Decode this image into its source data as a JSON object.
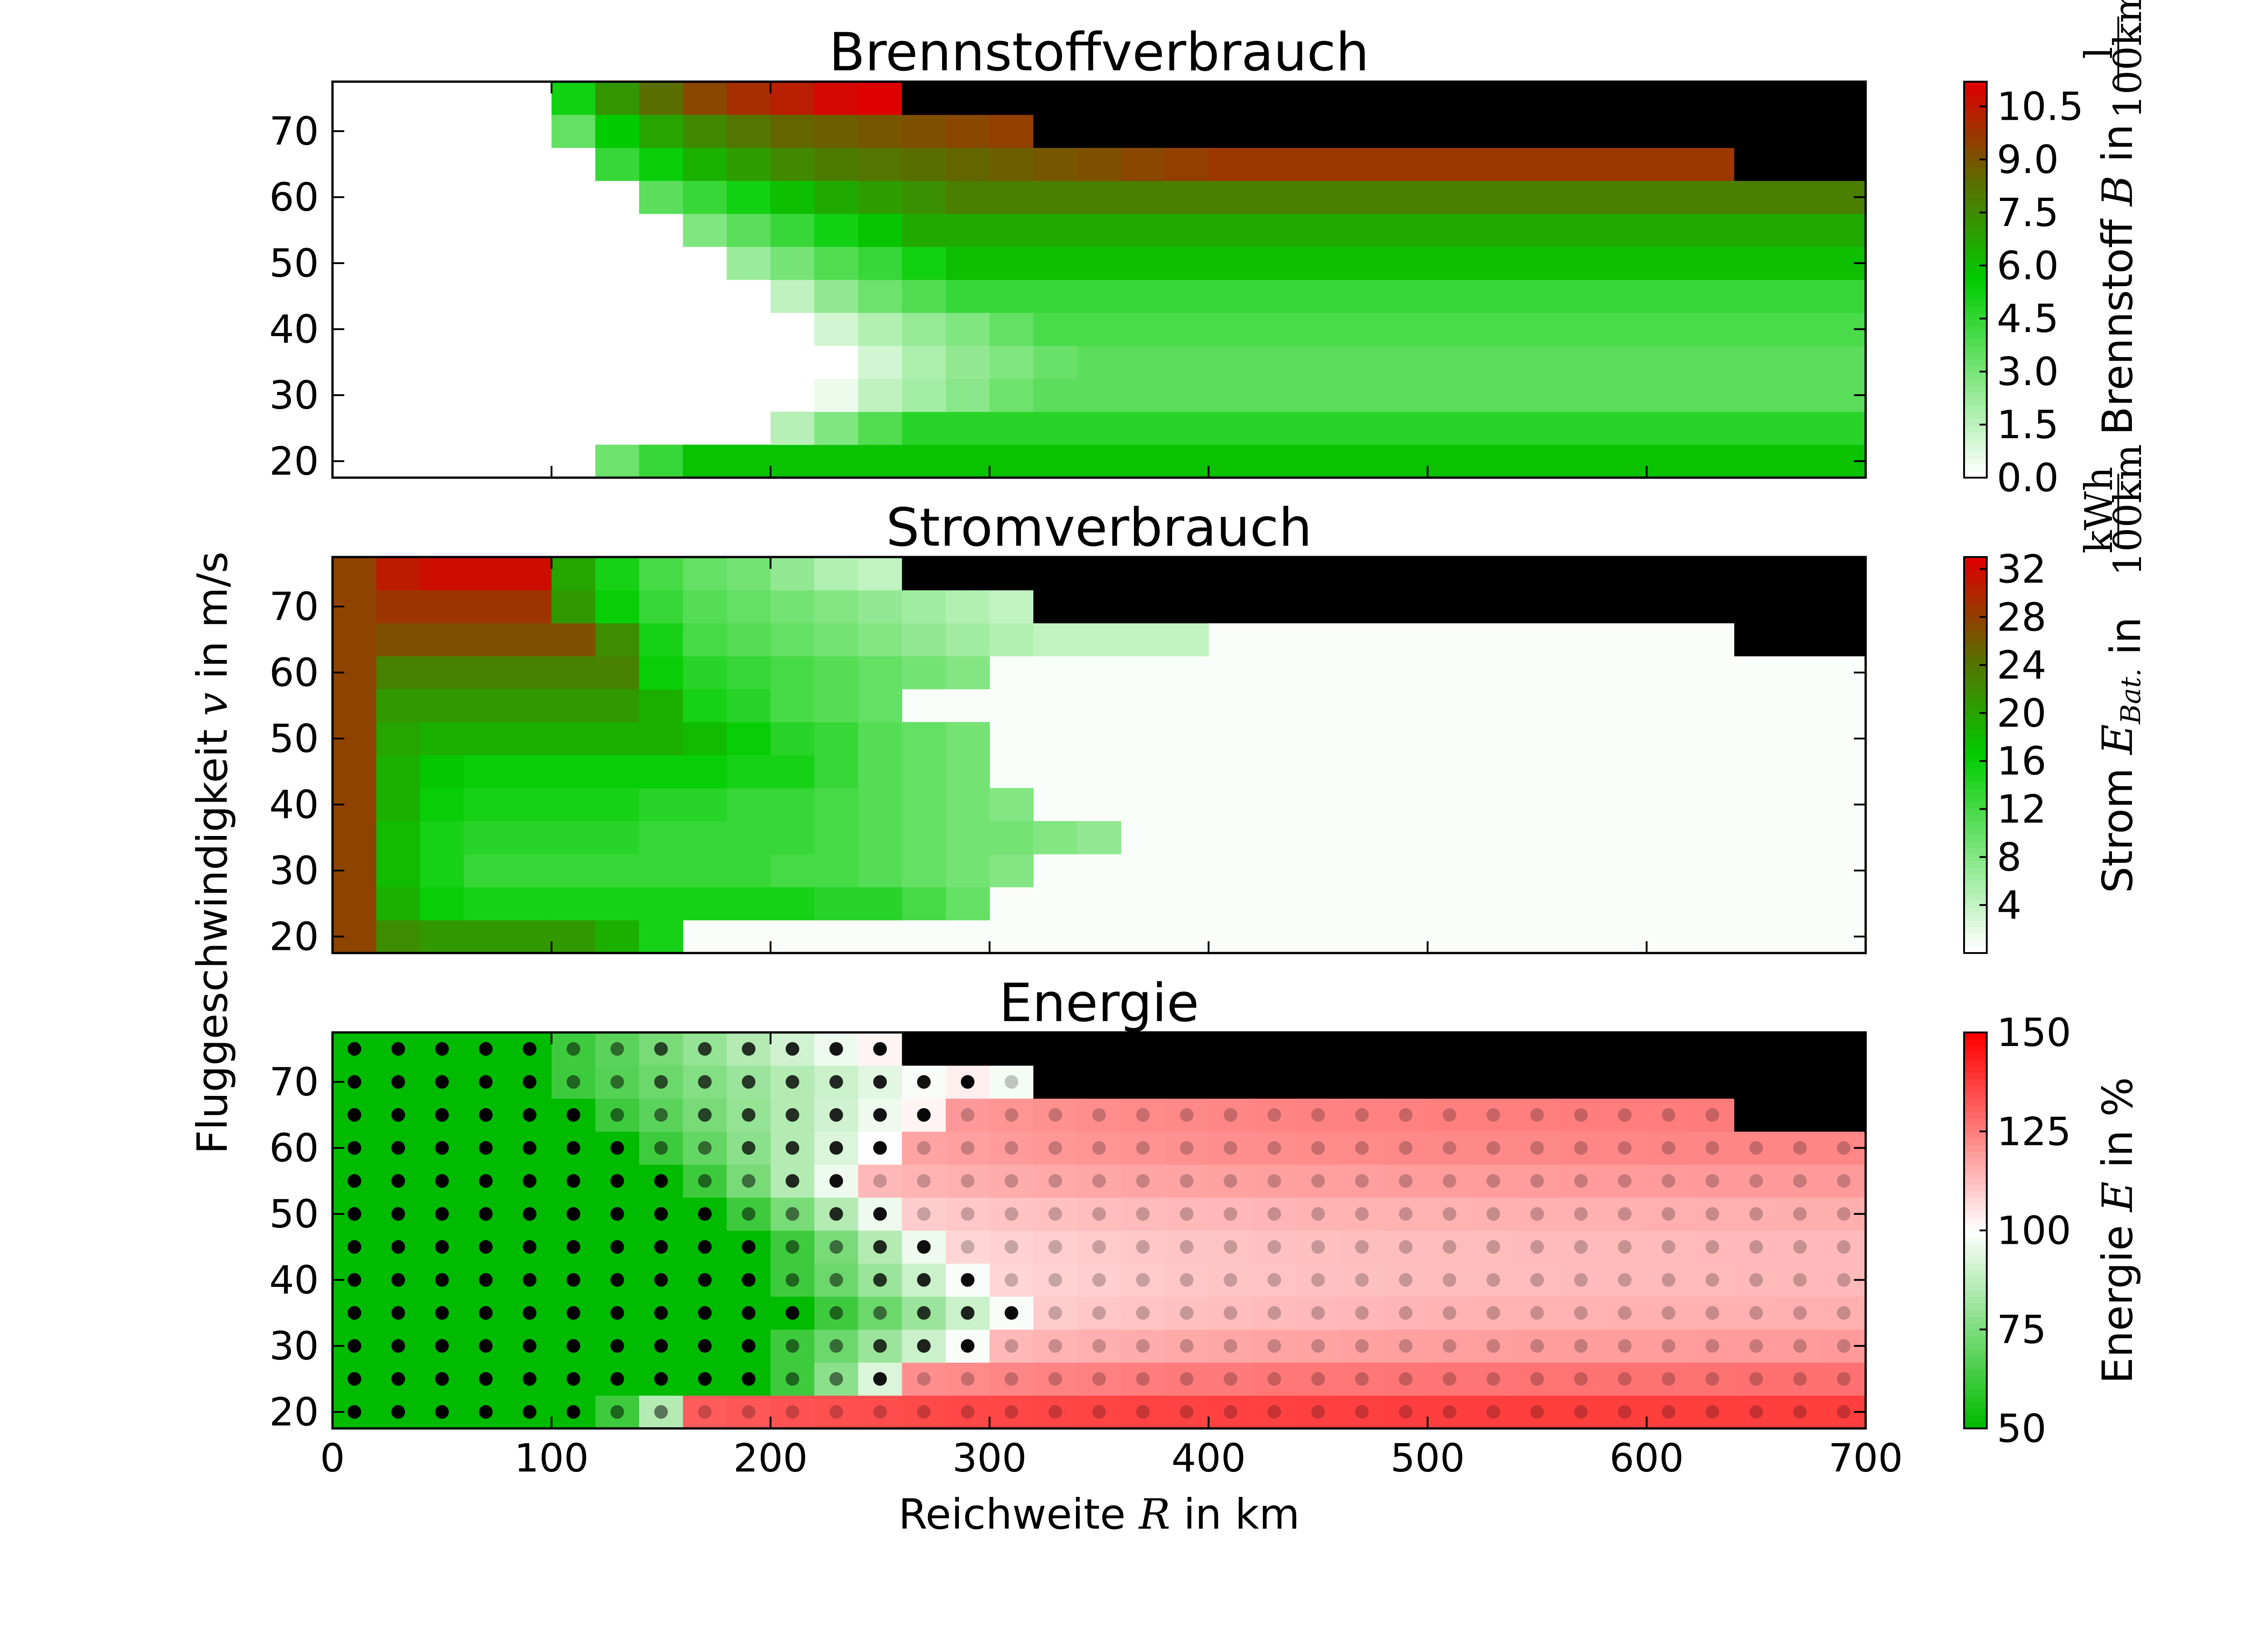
{
  "figure": {
    "shared_ylabel_prefix": "Fluggeschwindigkeit ",
    "shared_ylabel_var": "v",
    "shared_ylabel_suffix": " in m/s",
    "shared_xlabel_prefix": "Reichweite ",
    "shared_xlabel_var": "R",
    "shared_xlabel_suffix": " in km",
    "x_ticks": [
      0,
      100,
      200,
      300,
      400,
      500,
      600,
      700
    ],
    "y_ticks": [
      20,
      30,
      40,
      50,
      60,
      70
    ],
    "grid": {
      "x_bin_width": 20,
      "v_values": [
        20,
        25,
        30,
        35,
        40,
        45,
        50,
        55,
        60,
        65,
        70,
        75
      ],
      "xlim": [
        0,
        700
      ],
      "ylim": [
        17.5,
        77.5
      ]
    },
    "colors": {
      "infeasible": "#000000",
      "fuel_scale": [
        "#ffffff",
        "#00cc00",
        "#dd0000"
      ],
      "battery_scale": [
        "#ffffff",
        "#00cc00",
        "#dd0000"
      ],
      "energy_scale": [
        "#00bb00",
        "#ffffff",
        "#ff0000"
      ],
      "marker": "#000000"
    }
  },
  "chart_data": [
    {
      "type": "heatmap",
      "id": "fuel",
      "title": "Brennstoffverbrauch",
      "colorbar": {
        "label_prefix": "Brennstoff ",
        "label_var": "B",
        "label_suffix": " in ",
        "unit_num": "l",
        "unit_den": "100km",
        "ticks": [
          "0.0",
          "1.5",
          "3.0",
          "4.5",
          "6.0",
          "7.5",
          "9.0",
          "10.5"
        ],
        "range": [
          0,
          11.2
        ]
      },
      "infeasible_start_km": {
        "65": 640,
        "70": 320,
        "75": 260
      },
      "rows": {
        "20": {
          "x": [
            120,
            140,
            160
          ],
          "v": [
            3.2,
            4.4,
            5.9
          ]
        },
        "25": {
          "x": [
            200,
            220,
            240,
            260
          ],
          "v": [
            1.6,
            2.8,
            3.8,
            4.7
          ]
        },
        "30": {
          "x": [
            220,
            240,
            260,
            280,
            300,
            320
          ],
          "v": [
            0.4,
            1.4,
            2.0,
            2.6,
            3.2,
            3.6
          ]
        },
        "35": {
          "x": [
            240,
            260,
            280,
            300,
            320,
            340
          ],
          "v": [
            1.0,
            1.8,
            2.4,
            2.8,
            3.3,
            3.6
          ]
        },
        "40": {
          "x": [
            220,
            240,
            260,
            280,
            300,
            320
          ],
          "v": [
            1.0,
            1.7,
            2.3,
            2.8,
            3.4,
            4.0
          ]
        },
        "45": {
          "x": [
            200,
            220,
            240,
            260,
            280
          ],
          "v": [
            1.4,
            2.4,
            3.2,
            3.8,
            4.4
          ]
        },
        "50": {
          "x": [
            180,
            200,
            220,
            240,
            260,
            280
          ],
          "v": [
            2.2,
            3.0,
            3.8,
            4.4,
            5.2,
            6.0
          ]
        },
        "55": {
          "x": [
            160,
            180,
            200,
            220,
            240,
            260
          ],
          "v": [
            2.8,
            3.6,
            4.4,
            5.2,
            5.8,
            6.6
          ]
        },
        "60": {
          "x": [
            140,
            160,
            180,
            200,
            220,
            240,
            260,
            280
          ],
          "v": [
            3.6,
            4.4,
            5.2,
            6.0,
            6.6,
            7.0,
            7.4,
            7.9
          ]
        },
        "65": {
          "x": [
            120,
            140,
            160,
            180,
            200,
            220,
            240,
            260,
            280,
            300,
            320,
            340,
            360,
            380,
            400
          ],
          "v": [
            4.4,
            5.4,
            6.4,
            7.0,
            7.6,
            8.0,
            8.2,
            8.4,
            8.6,
            8.8,
            9.0,
            9.2,
            9.4,
            9.6,
            9.8
          ]
        },
        "70": {
          "x": [
            100,
            120,
            140,
            160,
            180,
            200,
            220,
            240,
            260,
            280,
            300
          ],
          "v": [
            3.4,
            5.6,
            6.8,
            7.6,
            8.2,
            8.6,
            8.8,
            9.0,
            9.2,
            9.4,
            9.6
          ]
        },
        "75": {
          "x": [
            100,
            120,
            140,
            160,
            180,
            200,
            220,
            240
          ],
          "v": [
            5.2,
            7.2,
            8.4,
            9.4,
            10.0,
            10.4,
            11.0,
            11.2
          ]
        }
      }
    },
    {
      "type": "heatmap",
      "id": "battery",
      "title": "Stromverbrauch",
      "colorbar": {
        "label_prefix": "Strom ",
        "label_var": "E",
        "label_sub": "Bat.",
        "label_suffix": " in ",
        "unit_num": "kWh",
        "unit_den": "100km",
        "ticks": [
          "4",
          "8",
          "12",
          "16",
          "20",
          "24",
          "28",
          "32"
        ],
        "range": [
          0,
          33
        ]
      },
      "infeasible_start_km": {
        "65": 640,
        "70": 320,
        "75": 260
      },
      "rows": {
        "20": {
          "x": [
            0,
            20,
            40,
            60,
            80,
            100,
            120,
            140
          ],
          "v": [
            28,
            22,
            21,
            21,
            21,
            21,
            19,
            15
          ]
        },
        "25": {
          "x": [
            0,
            20,
            40,
            60,
            80,
            100,
            120,
            140,
            160,
            180,
            200,
            220,
            240,
            260,
            280
          ],
          "v": [
            28,
            19,
            16,
            15,
            15,
            15,
            15,
            15,
            15,
            15,
            15,
            14,
            14,
            12,
            10
          ]
        },
        "30": {
          "x": [
            0,
            20,
            40,
            60,
            80,
            100,
            120,
            140,
            160,
            180,
            200,
            220,
            240,
            260,
            280,
            300
          ],
          "v": [
            28,
            18,
            15,
            13,
            13,
            13,
            13,
            13,
            13,
            13,
            12,
            12,
            11,
            10,
            9,
            8
          ]
        },
        "35": {
          "x": [
            0,
            20,
            40,
            60,
            80,
            100,
            120,
            140,
            160,
            180,
            200,
            220,
            240,
            260,
            280,
            300,
            320,
            340
          ],
          "v": [
            28,
            18,
            15,
            14,
            14,
            14,
            14,
            13,
            13,
            13,
            13,
            12,
            11,
            10,
            9,
            9,
            8,
            7
          ]
        },
        "40": {
          "x": [
            0,
            20,
            40,
            60,
            80,
            100,
            120,
            140,
            160,
            180,
            200,
            220,
            240,
            260,
            280,
            300
          ],
          "v": [
            28,
            19,
            16,
            15,
            15,
            15,
            15,
            14,
            14,
            13,
            13,
            12,
            11,
            10,
            9,
            8
          ]
        },
        "45": {
          "x": [
            0,
            20,
            40,
            60,
            80,
            100,
            120,
            140,
            160,
            180,
            200,
            220,
            240,
            260,
            280
          ],
          "v": [
            28,
            19,
            17,
            16,
            16,
            16,
            16,
            16,
            16,
            15,
            15,
            13,
            11,
            10,
            9
          ]
        },
        "50": {
          "x": [
            0,
            20,
            40,
            60,
            80,
            100,
            120,
            140,
            160,
            180,
            200,
            220,
            240,
            260,
            280
          ],
          "v": [
            28,
            20,
            19,
            19,
            19,
            19,
            19,
            19,
            18,
            16,
            14,
            13,
            11,
            10,
            9
          ]
        },
        "55": {
          "x": [
            0,
            20,
            40,
            60,
            80,
            100,
            120,
            140,
            160,
            180,
            200,
            220,
            240
          ],
          "v": [
            28,
            21,
            21,
            21,
            21,
            21,
            21,
            19,
            15,
            14,
            12,
            11,
            10
          ]
        },
        "60": {
          "x": [
            0,
            20,
            40,
            60,
            80,
            100,
            120,
            140,
            160,
            180,
            200,
            220,
            240,
            260,
            280
          ],
          "v": [
            28,
            23,
            23,
            23,
            23,
            23,
            23,
            16,
            14,
            13,
            12,
            11,
            10,
            9,
            8
          ]
        },
        "65": {
          "x": [
            0,
            20,
            40,
            60,
            80,
            100,
            120,
            140,
            160,
            180,
            200,
            220,
            240,
            260,
            280,
            300,
            320,
            340,
            360,
            380
          ],
          "v": [
            28,
            27,
            27,
            27,
            27,
            27,
            22,
            15,
            12,
            11,
            10,
            9,
            8,
            7,
            6,
            5,
            4,
            4,
            4,
            4
          ]
        },
        "70": {
          "x": [
            0,
            20,
            40,
            60,
            80,
            100,
            120,
            140,
            160,
            180,
            200,
            220,
            240,
            260,
            280,
            300
          ],
          "v": [
            28,
            29,
            29,
            29,
            29,
            21,
            16,
            13,
            11,
            10,
            9,
            8,
            7,
            6,
            5,
            4
          ]
        },
        "75": {
          "x": [
            0,
            20,
            40,
            60,
            80,
            100,
            120,
            140,
            160,
            180,
            200,
            220,
            240
          ],
          "v": [
            28,
            31,
            32,
            32,
            32,
            20,
            15,
            12,
            10,
            9,
            7,
            5,
            4
          ]
        }
      },
      "background_value": 0.3
    },
    {
      "type": "heatmap",
      "id": "energy",
      "title": "Energie",
      "colorbar": {
        "label_prefix": "Energie ",
        "label_var": "E",
        "label_suffix": " in %",
        "ticks": [
          "50",
          "75",
          "100",
          "125",
          "150"
        ],
        "range": [
          50,
          150
        ]
      },
      "infeasible_start_km": {
        "65": 640,
        "70": 320,
        "75": 260
      },
      "feasible_end_km": {
        "20": 700,
        "25": 700,
        "30": 700,
        "35": 700,
        "40": 700,
        "45": 700,
        "50": 700,
        "55": 700,
        "60": 700,
        "65": 640,
        "70": 320,
        "75": 260
      },
      "green_end_km": {
        "20": 120,
        "25": 200,
        "30": 200,
        "35": 220,
        "40": 200,
        "45": 200,
        "50": 180,
        "55": 160,
        "60": 140,
        "65": 120,
        "70": 100,
        "75": 100
      },
      "white_transition_end_km": {
        "20": 160,
        "25": 260,
        "30": 300,
        "35": 320,
        "40": 300,
        "45": 280,
        "50": 260,
        "55": 240,
        "60": 260,
        "65": 280,
        "70": 300,
        "75": 260
      },
      "red_level_far": {
        "20": 138,
        "25": 128,
        "30": 120,
        "35": 116,
        "40": 114,
        "45": 114,
        "50": 116,
        "55": 120,
        "60": 124,
        "65": 126,
        "70": 104,
        "75": 110
      },
      "markers": {
        "x_centers": [
          10,
          30,
          50,
          70,
          90,
          110,
          130,
          150,
          170,
          190,
          210,
          230,
          250,
          270,
          290,
          310,
          330,
          350,
          370,
          390,
          410,
          430,
          450,
          470,
          490,
          510,
          530,
          550,
          570,
          590,
          610,
          630,
          650,
          670,
          690
        ]
      }
    }
  ]
}
